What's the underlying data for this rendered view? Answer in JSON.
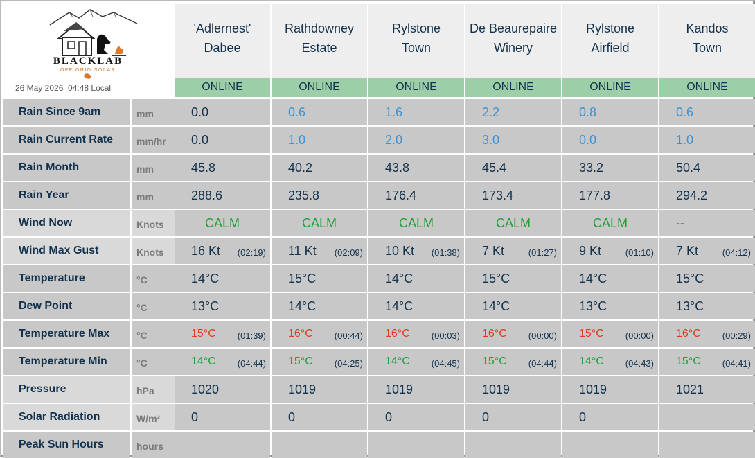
{
  "brand": {
    "name": "BLACKLAB",
    "tagline": "OFF GRID SOLAR"
  },
  "datetime": "26 May 2026  04:48 Local",
  "stations": [
    {
      "line1": "'Adlernest'",
      "line2": "Dabee",
      "status": "ONLINE"
    },
    {
      "line1": "Rathdowney",
      "line2": "Estate",
      "status": "ONLINE"
    },
    {
      "line1": "Rylstone",
      "line2": "Town",
      "status": "ONLINE"
    },
    {
      "line1": "De Beaurepaire",
      "line2": "Winery",
      "status": "ONLINE"
    },
    {
      "line1": "Rylstone",
      "line2": "Airfield",
      "status": "ONLINE"
    },
    {
      "line1": "Kandos",
      "line2": "Town",
      "status": "ONLINE"
    }
  ],
  "rows": [
    {
      "label": "Rain Since 9am",
      "unit": "mm",
      "values": [
        "0.0",
        "0.6",
        "1.6",
        "2.2",
        "0.8",
        "0.6"
      ]
    },
    {
      "label": "Rain Current Rate",
      "unit": "mm/hr",
      "values": [
        "0.0",
        "1.0",
        "2.0",
        "3.0",
        "0.0",
        "1.0"
      ]
    },
    {
      "label": "Rain Month",
      "unit": "mm",
      "values": [
        "45.8",
        "40.2",
        "43.8",
        "45.4",
        "33.2",
        "50.4"
      ]
    },
    {
      "label": "Rain Year",
      "unit": "mm",
      "values": [
        "288.6",
        "235.8",
        "176.4",
        "173.4",
        "177.8",
        "294.2"
      ]
    },
    {
      "label": "Wind Now",
      "unit": "Knots",
      "values": [
        "CALM",
        "CALM",
        "CALM",
        "CALM",
        "CALM",
        "--"
      ]
    },
    {
      "label": "Wind Max Gust",
      "unit": "Knots",
      "values": [
        "16 Kt",
        "11 Kt",
        "10 Kt",
        "7 Kt",
        "9 Kt",
        "7 Kt"
      ],
      "times": [
        "(02:19)",
        "(02:09)",
        "(01:38)",
        "(01:27)",
        "(01:10)",
        "(04:12)"
      ]
    },
    {
      "label": "Temperature",
      "unit": "°C",
      "values": [
        "14°C",
        "15°C",
        "14°C",
        "15°C",
        "14°C",
        "15°C"
      ]
    },
    {
      "label": "Dew Point",
      "unit": "°C",
      "values": [
        "13°C",
        "14°C",
        "14°C",
        "14°C",
        "13°C",
        "13°C"
      ]
    },
    {
      "label": "Temperature Max",
      "unit": "°C",
      "values": [
        "15°C",
        "16°C",
        "16°C",
        "16°C",
        "15°C",
        "16°C"
      ],
      "times": [
        "(01:39)",
        "(00:44)",
        "(00:03)",
        "(00:00)",
        "(00:00)",
        "(00:29)"
      ]
    },
    {
      "label": "Temperature Min",
      "unit": "°C",
      "values": [
        "14°C",
        "15°C",
        "14°C",
        "15°C",
        "14°C",
        "15°C"
      ],
      "times": [
        "(04:44)",
        "(04:25)",
        "(04:45)",
        "(04:44)",
        "(04:43)",
        "(04:41)"
      ]
    },
    {
      "label": "Pressure",
      "unit": "hPa",
      "values": [
        "1020",
        "1019",
        "1019",
        "1019",
        "1019",
        "1021"
      ]
    },
    {
      "label": "Solar Radiation",
      "unit": "W/m²",
      "values": [
        "0",
        "0",
        "0",
        "0",
        "0",
        ""
      ]
    },
    {
      "label": "Peak Sun Hours",
      "unit": "hours",
      "values": [
        "",
        "",
        "",
        "",
        "",
        ""
      ]
    }
  ],
  "colors": {
    "online": "#9ccfa7",
    "rain_blue": "#3b93d6",
    "max_red": "#e33a1b",
    "min_green": "#21a036",
    "text_navy": "#13324d"
  }
}
